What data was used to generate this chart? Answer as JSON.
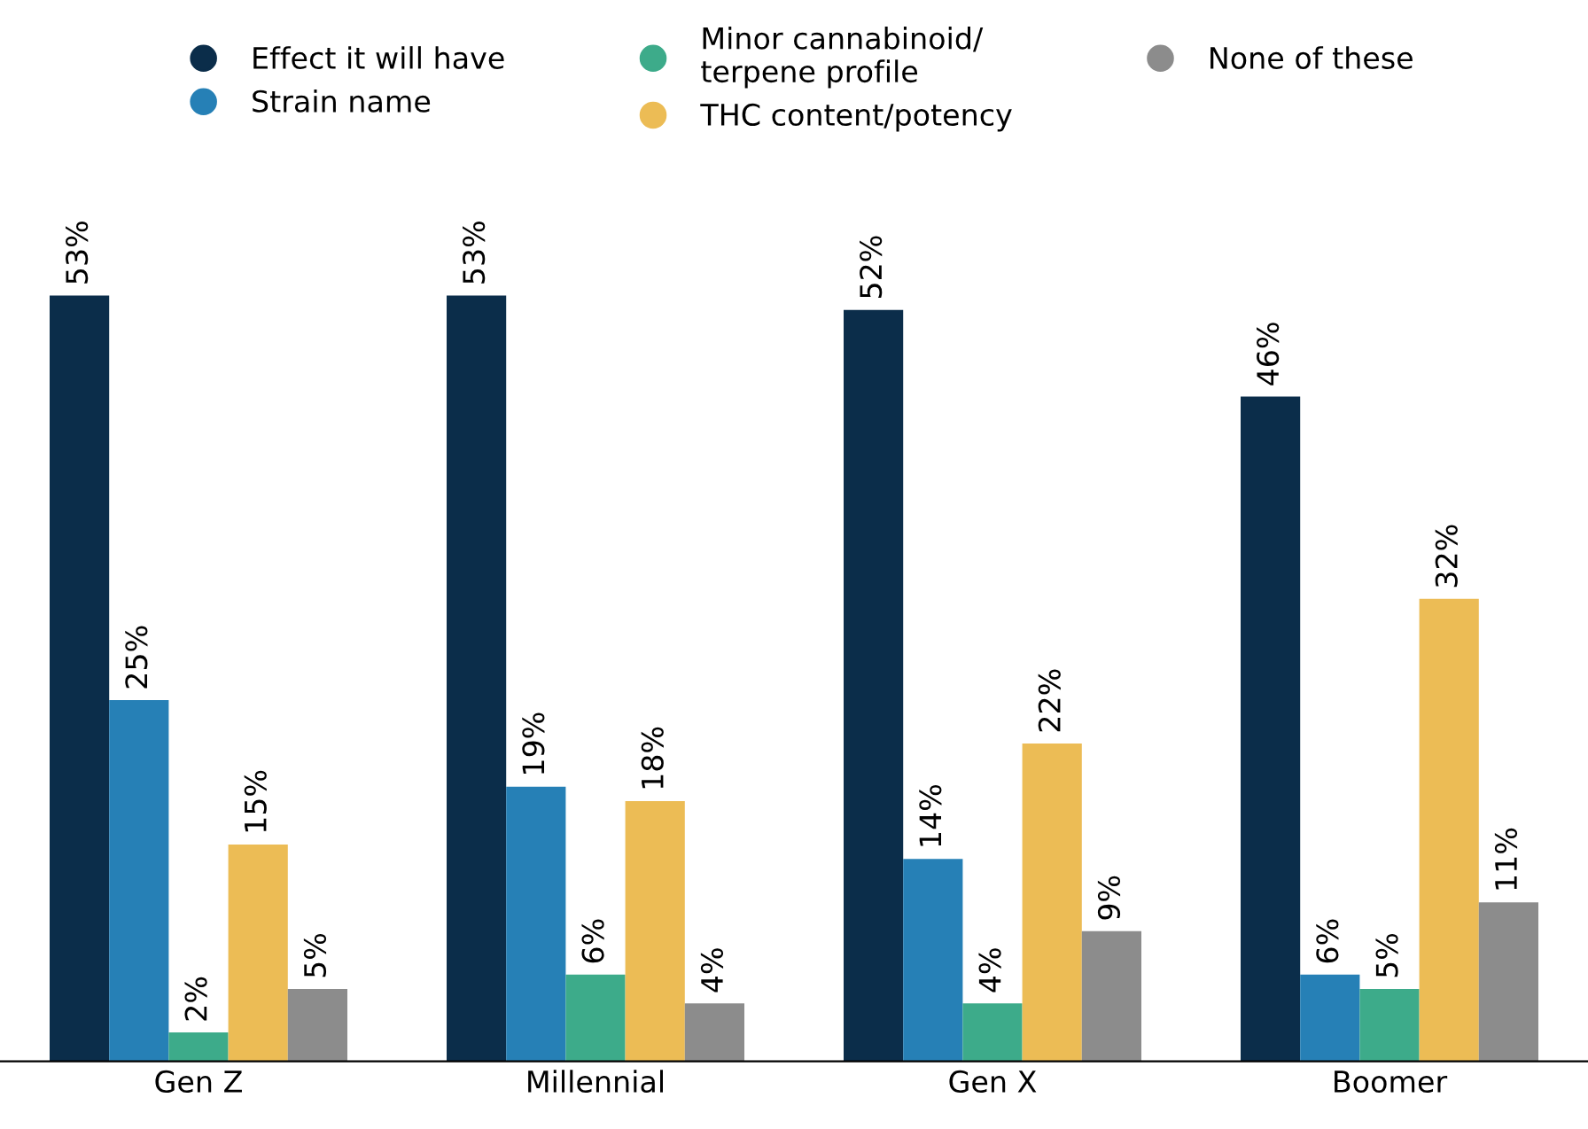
{
  "chart_data": {
    "type": "bar",
    "categories": [
      "Gen Z",
      "Millennial",
      "Gen X",
      "Boomer"
    ],
    "series": [
      {
        "name": "Effect it will have",
        "color": "#0b2d4a",
        "values": [
          53,
          53,
          52,
          46
        ],
        "value_labels": [
          "53%",
          "53%",
          "52%",
          "46%"
        ]
      },
      {
        "name": "Strain name",
        "color": "#2680b6",
        "values": [
          25,
          19,
          14,
          6
        ],
        "value_labels": [
          "25%",
          "19%",
          "14%",
          "6%"
        ]
      },
      {
        "name": "Minor cannabinoid/\nterpene profile",
        "color": "#3dab8a",
        "values": [
          2,
          6,
          4,
          5
        ],
        "value_labels": [
          "2%",
          "6%",
          "4%",
          "5%"
        ]
      },
      {
        "name": "THC content/potency",
        "color": "#ecbc55",
        "values": [
          15,
          18,
          22,
          32
        ],
        "value_labels": [
          "15%",
          "18%",
          "22%",
          "32%"
        ]
      },
      {
        "name": "None of these",
        "color": "#8c8c8c",
        "values": [
          5,
          4,
          9,
          11
        ],
        "value_labels": [
          "5%",
          "4%",
          "9%",
          "11%"
        ]
      }
    ],
    "legend": "top",
    "tick_labels": "x"
  }
}
